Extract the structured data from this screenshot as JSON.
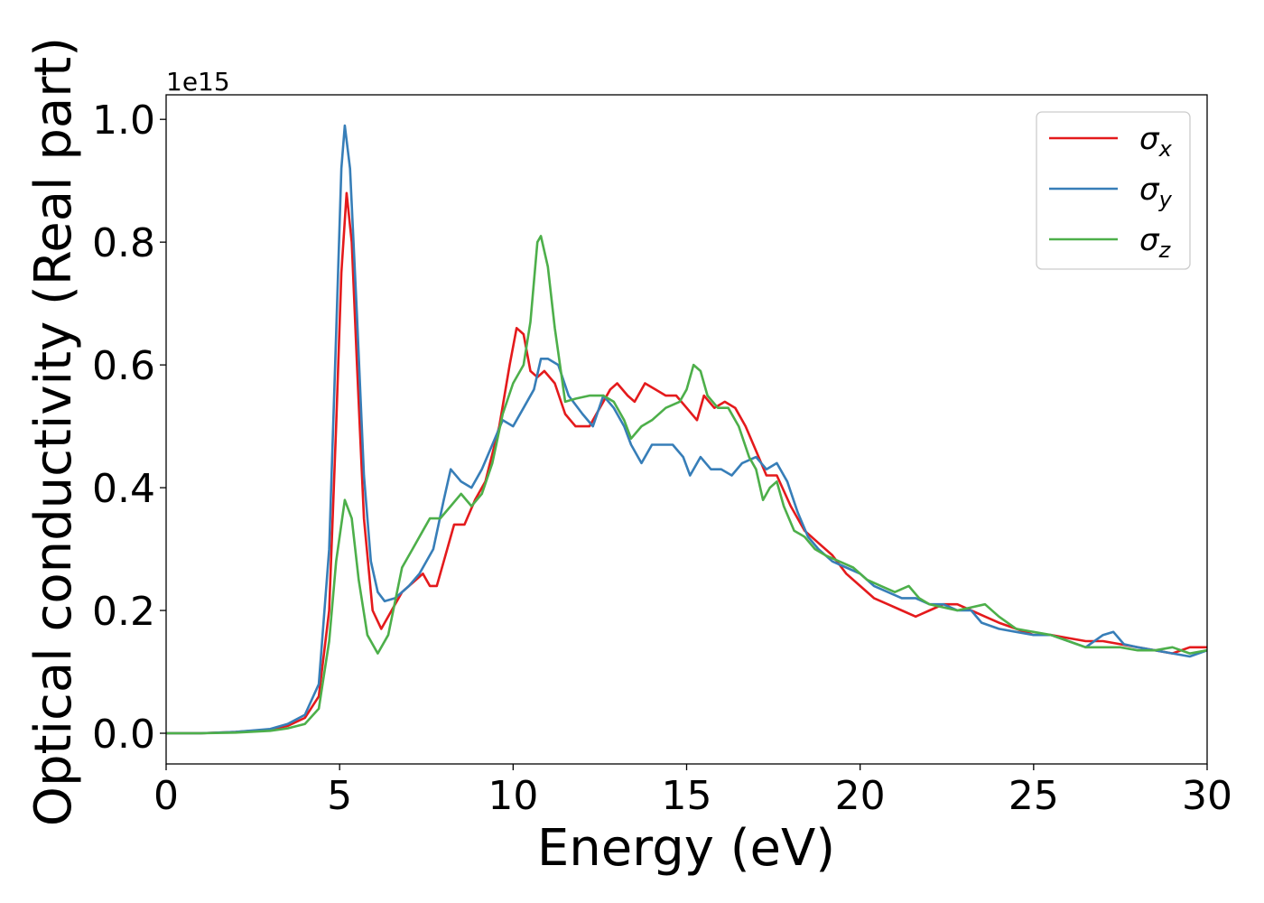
{
  "chart_data": {
    "type": "line",
    "xlabel": "Energy (eV)",
    "ylabel": "Optical conductivity (Real part)",
    "y_offset_text": "1e15",
    "xlim": [
      0,
      30
    ],
    "ylim": [
      -0.05,
      1.04
    ],
    "x_ticks": [
      0,
      5,
      10,
      15,
      20,
      25,
      30
    ],
    "x_tick_labels": [
      "0",
      "5",
      "10",
      "15",
      "20",
      "25",
      "30"
    ],
    "y_ticks": [
      0.0,
      0.2,
      0.4,
      0.6,
      0.8,
      1.0
    ],
    "y_tick_labels": [
      "0.0",
      "0.2",
      "0.4",
      "0.6",
      "0.8",
      "1.0"
    ],
    "grid": false,
    "legend_position": "top-right",
    "series": [
      {
        "name": "σx",
        "symbol": "σ",
        "subscript": "x",
        "color": "#e41a1c",
        "points": [
          [
            0,
            0.0
          ],
          [
            1,
            0.0
          ],
          [
            2,
            0.002
          ],
          [
            3,
            0.006
          ],
          [
            3.5,
            0.012
          ],
          [
            4.0,
            0.025
          ],
          [
            4.4,
            0.06
          ],
          [
            4.7,
            0.2
          ],
          [
            4.9,
            0.5
          ],
          [
            5.05,
            0.75
          ],
          [
            5.2,
            0.88
          ],
          [
            5.35,
            0.8
          ],
          [
            5.5,
            0.6
          ],
          [
            5.7,
            0.35
          ],
          [
            5.95,
            0.2
          ],
          [
            6.2,
            0.17
          ],
          [
            6.5,
            0.2
          ],
          [
            6.8,
            0.23
          ],
          [
            7.2,
            0.25
          ],
          [
            7.4,
            0.26
          ],
          [
            7.6,
            0.24
          ],
          [
            7.8,
            0.24
          ],
          [
            8.0,
            0.28
          ],
          [
            8.3,
            0.34
          ],
          [
            8.6,
            0.34
          ],
          [
            8.9,
            0.38
          ],
          [
            9.2,
            0.41
          ],
          [
            9.6,
            0.5
          ],
          [
            9.9,
            0.6
          ],
          [
            10.1,
            0.66
          ],
          [
            10.3,
            0.65
          ],
          [
            10.5,
            0.59
          ],
          [
            10.7,
            0.58
          ],
          [
            10.9,
            0.59
          ],
          [
            11.2,
            0.57
          ],
          [
            11.5,
            0.52
          ],
          [
            11.8,
            0.5
          ],
          [
            12.2,
            0.5
          ],
          [
            12.5,
            0.53
          ],
          [
            12.8,
            0.56
          ],
          [
            13.0,
            0.57
          ],
          [
            13.3,
            0.55
          ],
          [
            13.5,
            0.54
          ],
          [
            13.8,
            0.57
          ],
          [
            14.1,
            0.56
          ],
          [
            14.4,
            0.55
          ],
          [
            14.7,
            0.55
          ],
          [
            15.0,
            0.53
          ],
          [
            15.3,
            0.51
          ],
          [
            15.5,
            0.55
          ],
          [
            15.8,
            0.53
          ],
          [
            16.1,
            0.54
          ],
          [
            16.4,
            0.53
          ],
          [
            16.7,
            0.5
          ],
          [
            17.0,
            0.46
          ],
          [
            17.3,
            0.42
          ],
          [
            17.6,
            0.42
          ],
          [
            18.0,
            0.37
          ],
          [
            18.4,
            0.33
          ],
          [
            18.8,
            0.31
          ],
          [
            19.2,
            0.29
          ],
          [
            19.6,
            0.26
          ],
          [
            20.0,
            0.24
          ],
          [
            20.4,
            0.22
          ],
          [
            20.8,
            0.21
          ],
          [
            21.2,
            0.2
          ],
          [
            21.6,
            0.19
          ],
          [
            22.0,
            0.2
          ],
          [
            22.4,
            0.21
          ],
          [
            22.8,
            0.21
          ],
          [
            23.2,
            0.2
          ],
          [
            23.6,
            0.19
          ],
          [
            24.0,
            0.18
          ],
          [
            24.5,
            0.17
          ],
          [
            25.0,
            0.16
          ],
          [
            25.5,
            0.16
          ],
          [
            26.0,
            0.155
          ],
          [
            26.5,
            0.15
          ],
          [
            27.0,
            0.15
          ],
          [
            27.5,
            0.145
          ],
          [
            28.0,
            0.14
          ],
          [
            28.5,
            0.135
          ],
          [
            29.0,
            0.13
          ],
          [
            29.5,
            0.14
          ],
          [
            30.0,
            0.14
          ]
        ]
      },
      {
        "name": "σy",
        "symbol": "σ",
        "subscript": "y",
        "color": "#377eb8",
        "points": [
          [
            0,
            0.0
          ],
          [
            1,
            0.0
          ],
          [
            2,
            0.002
          ],
          [
            3,
            0.007
          ],
          [
            3.5,
            0.015
          ],
          [
            4.0,
            0.03
          ],
          [
            4.4,
            0.08
          ],
          [
            4.7,
            0.3
          ],
          [
            4.9,
            0.65
          ],
          [
            5.05,
            0.92
          ],
          [
            5.15,
            0.99
          ],
          [
            5.3,
            0.92
          ],
          [
            5.5,
            0.68
          ],
          [
            5.7,
            0.42
          ],
          [
            5.9,
            0.28
          ],
          [
            6.1,
            0.23
          ],
          [
            6.3,
            0.215
          ],
          [
            6.6,
            0.22
          ],
          [
            7.0,
            0.24
          ],
          [
            7.3,
            0.26
          ],
          [
            7.7,
            0.3
          ],
          [
            8.0,
            0.38
          ],
          [
            8.2,
            0.43
          ],
          [
            8.5,
            0.41
          ],
          [
            8.8,
            0.4
          ],
          [
            9.1,
            0.43
          ],
          [
            9.4,
            0.47
          ],
          [
            9.7,
            0.51
          ],
          [
            10.0,
            0.5
          ],
          [
            10.3,
            0.53
          ],
          [
            10.6,
            0.56
          ],
          [
            10.8,
            0.61
          ],
          [
            11.0,
            0.61
          ],
          [
            11.3,
            0.6
          ],
          [
            11.6,
            0.55
          ],
          [
            12.0,
            0.52
          ],
          [
            12.3,
            0.5
          ],
          [
            12.6,
            0.55
          ],
          [
            12.9,
            0.53
          ],
          [
            13.2,
            0.5
          ],
          [
            13.4,
            0.47
          ],
          [
            13.7,
            0.44
          ],
          [
            14.0,
            0.47
          ],
          [
            14.3,
            0.47
          ],
          [
            14.6,
            0.47
          ],
          [
            14.9,
            0.45
          ],
          [
            15.1,
            0.42
          ],
          [
            15.4,
            0.45
          ],
          [
            15.7,
            0.43
          ],
          [
            16.0,
            0.43
          ],
          [
            16.3,
            0.42
          ],
          [
            16.6,
            0.44
          ],
          [
            17.0,
            0.45
          ],
          [
            17.3,
            0.43
          ],
          [
            17.6,
            0.44
          ],
          [
            17.9,
            0.41
          ],
          [
            18.2,
            0.36
          ],
          [
            18.5,
            0.32
          ],
          [
            18.8,
            0.3
          ],
          [
            19.2,
            0.28
          ],
          [
            19.6,
            0.27
          ],
          [
            20.0,
            0.26
          ],
          [
            20.4,
            0.24
          ],
          [
            20.8,
            0.23
          ],
          [
            21.2,
            0.22
          ],
          [
            21.6,
            0.22
          ],
          [
            22.0,
            0.21
          ],
          [
            22.4,
            0.21
          ],
          [
            22.8,
            0.2
          ],
          [
            23.2,
            0.2
          ],
          [
            23.5,
            0.18
          ],
          [
            24.0,
            0.17
          ],
          [
            24.5,
            0.165
          ],
          [
            25.0,
            0.16
          ],
          [
            25.5,
            0.16
          ],
          [
            26.0,
            0.15
          ],
          [
            26.5,
            0.14
          ],
          [
            27.0,
            0.16
          ],
          [
            27.3,
            0.165
          ],
          [
            27.6,
            0.145
          ],
          [
            28.0,
            0.14
          ],
          [
            28.5,
            0.135
          ],
          [
            29.0,
            0.13
          ],
          [
            29.5,
            0.125
          ],
          [
            30.0,
            0.135
          ]
        ]
      },
      {
        "name": "σz",
        "symbol": "σ",
        "subscript": "z",
        "color": "#4daf4a",
        "points": [
          [
            0,
            0.0
          ],
          [
            1,
            0.0
          ],
          [
            2,
            0.001
          ],
          [
            3,
            0.004
          ],
          [
            3.5,
            0.008
          ],
          [
            4.0,
            0.015
          ],
          [
            4.4,
            0.04
          ],
          [
            4.7,
            0.15
          ],
          [
            4.9,
            0.28
          ],
          [
            5.15,
            0.38
          ],
          [
            5.35,
            0.35
          ],
          [
            5.55,
            0.25
          ],
          [
            5.8,
            0.16
          ],
          [
            6.1,
            0.13
          ],
          [
            6.4,
            0.16
          ],
          [
            6.8,
            0.27
          ],
          [
            7.1,
            0.3
          ],
          [
            7.4,
            0.33
          ],
          [
            7.6,
            0.35
          ],
          [
            7.9,
            0.35
          ],
          [
            8.2,
            0.37
          ],
          [
            8.5,
            0.39
          ],
          [
            8.8,
            0.37
          ],
          [
            9.1,
            0.39
          ],
          [
            9.4,
            0.44
          ],
          [
            9.7,
            0.52
          ],
          [
            10.0,
            0.57
          ],
          [
            10.3,
            0.6
          ],
          [
            10.5,
            0.67
          ],
          [
            10.7,
            0.8
          ],
          [
            10.8,
            0.81
          ],
          [
            11.0,
            0.76
          ],
          [
            11.2,
            0.66
          ],
          [
            11.5,
            0.54
          ],
          [
            11.8,
            0.545
          ],
          [
            12.2,
            0.55
          ],
          [
            12.6,
            0.55
          ],
          [
            12.9,
            0.54
          ],
          [
            13.2,
            0.51
          ],
          [
            13.4,
            0.48
          ],
          [
            13.7,
            0.5
          ],
          [
            14.0,
            0.51
          ],
          [
            14.4,
            0.53
          ],
          [
            14.8,
            0.54
          ],
          [
            15.0,
            0.56
          ],
          [
            15.2,
            0.6
          ],
          [
            15.4,
            0.59
          ],
          [
            15.6,
            0.55
          ],
          [
            15.9,
            0.53
          ],
          [
            16.2,
            0.53
          ],
          [
            16.5,
            0.5
          ],
          [
            16.8,
            0.45
          ],
          [
            17.0,
            0.43
          ],
          [
            17.2,
            0.38
          ],
          [
            17.4,
            0.4
          ],
          [
            17.6,
            0.41
          ],
          [
            17.8,
            0.37
          ],
          [
            18.1,
            0.33
          ],
          [
            18.4,
            0.32
          ],
          [
            18.7,
            0.3
          ],
          [
            19.0,
            0.29
          ],
          [
            19.4,
            0.28
          ],
          [
            19.8,
            0.27
          ],
          [
            20.2,
            0.25
          ],
          [
            20.6,
            0.24
          ],
          [
            21.0,
            0.23
          ],
          [
            21.4,
            0.24
          ],
          [
            21.7,
            0.22
          ],
          [
            22.0,
            0.21
          ],
          [
            22.4,
            0.205
          ],
          [
            22.8,
            0.2
          ],
          [
            23.2,
            0.205
          ],
          [
            23.6,
            0.21
          ],
          [
            24.0,
            0.19
          ],
          [
            24.5,
            0.17
          ],
          [
            25.0,
            0.165
          ],
          [
            25.5,
            0.16
          ],
          [
            26.0,
            0.15
          ],
          [
            26.5,
            0.14
          ],
          [
            27.0,
            0.14
          ],
          [
            27.5,
            0.14
          ],
          [
            28.0,
            0.135
          ],
          [
            28.5,
            0.135
          ],
          [
            29.0,
            0.14
          ],
          [
            29.5,
            0.13
          ],
          [
            30.0,
            0.135
          ]
        ]
      }
    ]
  }
}
